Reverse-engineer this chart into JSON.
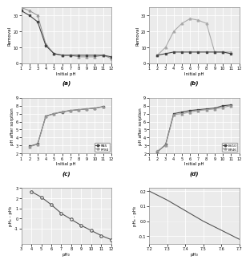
{
  "panel_a": {
    "title": "(a)",
    "xlabel": "Initial pH",
    "ylabel": "Removal",
    "series": [
      {
        "x": [
          1,
          2,
          3,
          4,
          5,
          6,
          7,
          8,
          9,
          10,
          11,
          12
        ],
        "y": [
          35,
          33,
          30,
          12,
          6,
          5,
          5,
          4,
          4,
          4,
          5,
          3
        ],
        "color": "#999999",
        "marker": "^",
        "markersize": 2.0,
        "linestyle": "-"
      },
      {
        "x": [
          1,
          2,
          3,
          4,
          5,
          6,
          7,
          8,
          9,
          10,
          11,
          12
        ],
        "y": [
          33,
          30,
          26,
          11,
          6,
          5,
          5,
          5,
          5,
          5,
          5,
          4
        ],
        "color": "#444444",
        "marker": "s",
        "markersize": 2.0,
        "linestyle": "-"
      }
    ],
    "xlim": [
      1,
      12
    ],
    "ylim": [
      0,
      35
    ],
    "yticks": [
      0,
      10,
      20,
      30
    ],
    "xticks": [
      1,
      2,
      3,
      4,
      5,
      6,
      7,
      8,
      9,
      10,
      11,
      12
    ]
  },
  "panel_b": {
    "title": "(b)",
    "xlabel": "Initial pH",
    "ylabel": "Removal",
    "series": [
      {
        "x": [
          2,
          3,
          4,
          5,
          6,
          7,
          8,
          9,
          10,
          11
        ],
        "y": [
          5,
          10,
          20,
          25,
          28,
          27,
          25,
          7,
          7,
          7
        ],
        "color": "#aaaaaa",
        "marker": "^",
        "markersize": 2.0,
        "linestyle": "-"
      },
      {
        "x": [
          2,
          3,
          4,
          5,
          6,
          7,
          8,
          9,
          10,
          11
        ],
        "y": [
          5,
          6,
          7,
          7,
          7,
          7,
          7,
          7,
          7,
          6
        ],
        "color": "#444444",
        "marker": "s",
        "markersize": 2.0,
        "linestyle": "-"
      }
    ],
    "xlim": [
      1,
      12
    ],
    "ylim": [
      0,
      35
    ],
    "yticks": [
      0,
      10,
      20,
      30
    ],
    "xticks": [
      1,
      2,
      3,
      4,
      5,
      6,
      7,
      8,
      9,
      10,
      11,
      12
    ]
  },
  "panel_c": {
    "title": "(c)",
    "xlabel": "Initial pH",
    "ylabel": "pH after sorption",
    "series": [
      {
        "label": "RB5",
        "x": [
          2,
          3,
          4,
          5,
          6,
          7,
          8,
          9,
          10,
          11
        ],
        "y": [
          2.9,
          3.2,
          6.7,
          7.0,
          7.2,
          7.4,
          7.5,
          7.6,
          7.7,
          7.9
        ],
        "color": "#444444",
        "marker": "s",
        "markersize": 2.0,
        "linestyle": "-"
      },
      {
        "label": "RY84",
        "x": [
          2,
          3,
          4,
          5,
          6,
          7,
          8,
          9,
          10,
          11
        ],
        "y": [
          2.85,
          3.15,
          6.65,
          7.0,
          7.25,
          7.4,
          7.5,
          7.6,
          7.7,
          7.85
        ],
        "color": "#999999",
        "marker": "^",
        "markersize": 2.0,
        "linestyle": "-"
      }
    ],
    "xlim": [
      1,
      12
    ],
    "ylim": [
      2,
      9
    ],
    "yticks": [
      2,
      3,
      4,
      5,
      6,
      7,
      8,
      9
    ],
    "xticks": [
      1,
      2,
      3,
      4,
      5,
      6,
      7,
      8,
      9,
      10,
      11,
      12
    ]
  },
  "panel_d": {
    "title": "(d)",
    "xlabel": "Initial pH",
    "ylabel": "pH after sorption",
    "series": [
      {
        "label": "BV10",
        "x": [
          2,
          3,
          4,
          5,
          6,
          7,
          8,
          9,
          10,
          11
        ],
        "y": [
          2.2,
          3.1,
          7.0,
          7.2,
          7.4,
          7.5,
          7.6,
          7.7,
          8.0,
          8.1
        ],
        "color": "#444444",
        "marker": "s",
        "markersize": 2.0,
        "linestyle": "-"
      },
      {
        "label": "BR46",
        "x": [
          2,
          3,
          4,
          5,
          6,
          7,
          8,
          9,
          10,
          11
        ],
        "y": [
          2.3,
          3.0,
          6.9,
          7.0,
          7.2,
          7.4,
          7.5,
          7.6,
          7.8,
          8.0
        ],
        "color": "#999999",
        "marker": "^",
        "markersize": 2.0,
        "linestyle": "-"
      }
    ],
    "xlim": [
      1,
      12
    ],
    "ylim": [
      2,
      9
    ],
    "yticks": [
      2,
      3,
      4,
      5,
      6,
      7,
      8,
      9
    ],
    "xticks": [
      1,
      2,
      3,
      4,
      5,
      6,
      7,
      8,
      9,
      10,
      11,
      12
    ]
  },
  "panel_e": {
    "xlabel": "pH₀",
    "ylabel": "pHₑ - pH₀",
    "x": [
      4,
      5,
      6,
      7,
      8,
      9,
      10,
      11,
      12
    ],
    "y": [
      2.65,
      2.1,
      1.35,
      0.5,
      -0.1,
      -0.7,
      -1.2,
      -1.7,
      -2.1
    ],
    "color": "#555555",
    "marker": "o",
    "markersize": 2.5,
    "xlim": [
      3,
      12
    ],
    "ylim": [
      -2.5,
      3.0
    ],
    "yticks": [
      -1,
      0,
      1,
      2,
      3
    ],
    "xticks": [
      3,
      4,
      5,
      6,
      7,
      8,
      9,
      10,
      11,
      12
    ],
    "linestyle": "-"
  },
  "panel_f": {
    "xlabel": "pH₀",
    "ylabel": "pHₑ - pH₀",
    "x": [
      7.2,
      7.3,
      7.4,
      7.5,
      7.6,
      7.7
    ],
    "y": [
      0.2,
      0.14,
      0.07,
      0.0,
      -0.06,
      -0.12
    ],
    "color": "#555555",
    "marker": "none",
    "xlim": [
      7.2,
      7.7
    ],
    "ylim": [
      -0.15,
      0.22
    ],
    "yticks": [
      -0.1,
      0.0,
      0.1,
      0.2
    ],
    "xticks": [
      7.2,
      7.3,
      7.4,
      7.5,
      7.6,
      7.7
    ],
    "linestyle": "-"
  },
  "bg_color": "#ebebeb",
  "grid_color": "#ffffff",
  "lw": 0.8
}
